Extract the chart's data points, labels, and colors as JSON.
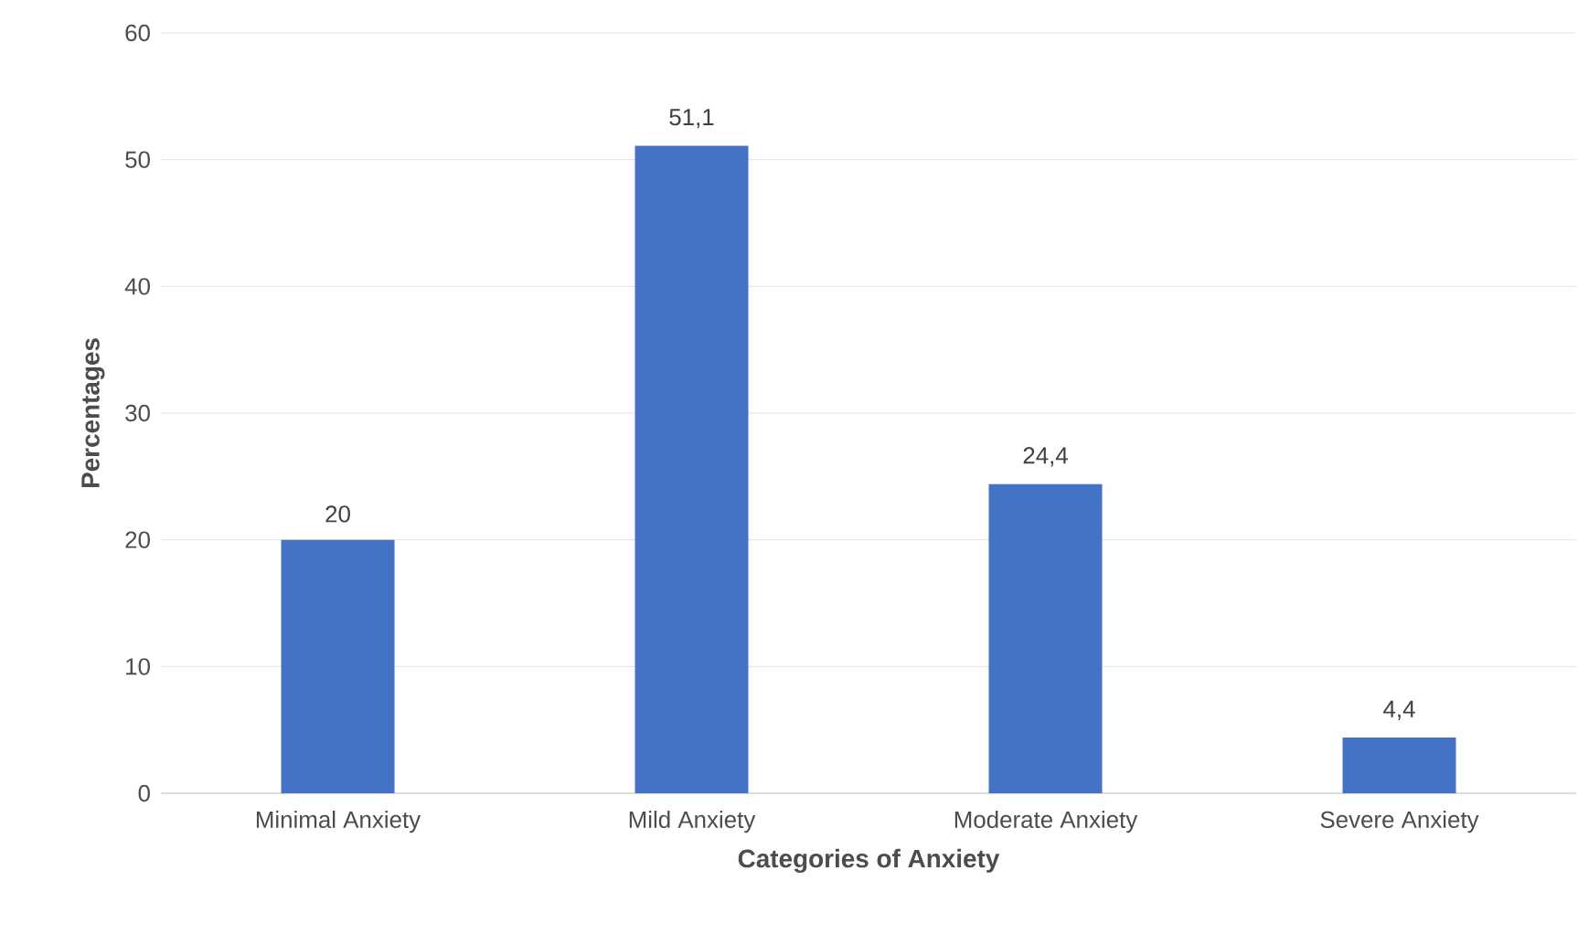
{
  "chart_data": {
    "type": "bar",
    "xlabel": "Categories of Anxiety",
    "ylabel": "Percentages",
    "categories": [
      "Minimal Anxiety",
      "Mild Anxiety",
      "Moderate Anxiety",
      "Severe Anxiety"
    ],
    "values": [
      20,
      51.1,
      24.4,
      4.4
    ],
    "value_labels": [
      "20",
      "51,1",
      "24,4",
      "4,4"
    ],
    "color": "#4472c4",
    "ylim": [
      0,
      60
    ],
    "yticks": [
      0,
      10,
      20,
      30,
      40,
      50,
      60
    ],
    "grid": "y"
  }
}
